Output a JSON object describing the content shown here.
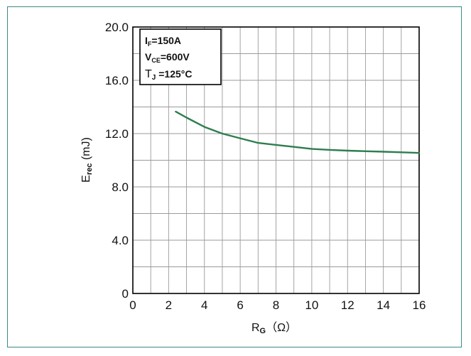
{
  "chart_data": {
    "type": "line",
    "title": "",
    "xlabel_main": "R",
    "xlabel_sub": "G",
    "xlabel_unit": "（Ω）",
    "ylabel_main": "E",
    "ylabel_sub": "rec",
    "ylabel_unit": " (mJ)",
    "xlim": [
      0,
      16
    ],
    "ylim": [
      0,
      20
    ],
    "xticks": [
      "0",
      "2",
      "4",
      "6",
      "8",
      "10",
      "12",
      "14",
      "16"
    ],
    "yticks": [
      "0",
      "4.0",
      "8.0",
      "12.0",
      "16.0",
      "20.0"
    ],
    "grid": true,
    "series": [
      {
        "color": "#2e7d4f",
        "x": [
          2.4,
          3.0,
          4.0,
          5.0,
          6.0,
          7.0,
          8.0,
          9.0,
          10.0,
          11.0,
          12.0,
          13.0,
          14.0,
          15.0,
          16.0
        ],
        "y": [
          13.65,
          13.2,
          12.5,
          12.0,
          11.65,
          11.3,
          11.15,
          11.0,
          10.85,
          10.78,
          10.72,
          10.68,
          10.64,
          10.6,
          10.55
        ]
      }
    ],
    "annotations": {
      "line1_main": "I",
      "line1_sub": "F",
      "line1_rest": "=150A",
      "line2_main": "V",
      "line2_sub": "CE",
      "line2_rest": "=600V",
      "line3_main": "T",
      "line3_sub": "J",
      "line3_rest": " =125°C"
    }
  }
}
